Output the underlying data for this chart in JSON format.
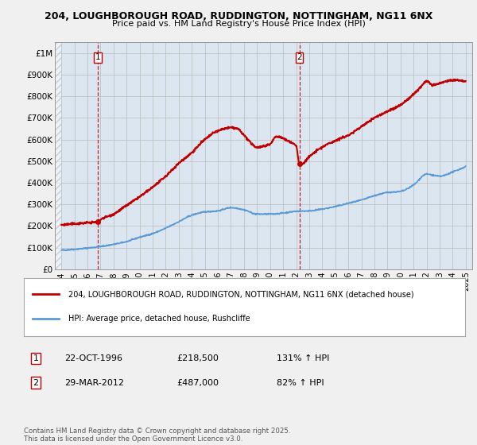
{
  "title_line1": "204, LOUGHBOROUGH ROAD, RUDDINGTON, NOTTINGHAM, NG11 6NX",
  "title_line2": "Price paid vs. HM Land Registry's House Price Index (HPI)",
  "xlim": [
    1993.5,
    2025.5
  ],
  "ylim": [
    0,
    1050000
  ],
  "yticks": [
    0,
    100000,
    200000,
    300000,
    400000,
    500000,
    600000,
    700000,
    800000,
    900000,
    1000000
  ],
  "ytick_labels": [
    "£0",
    "£100K",
    "£200K",
    "£300K",
    "£400K",
    "£500K",
    "£600K",
    "£700K",
    "£800K",
    "£900K",
    "£1M"
  ],
  "xticks": [
    1994,
    1995,
    1996,
    1997,
    1998,
    1999,
    2000,
    2001,
    2002,
    2003,
    2004,
    2005,
    2006,
    2007,
    2008,
    2009,
    2010,
    2011,
    2012,
    2013,
    2014,
    2015,
    2016,
    2017,
    2018,
    2019,
    2020,
    2021,
    2022,
    2023,
    2024,
    2025
  ],
  "hpi_color": "#5b9bd5",
  "price_color": "#c00000",
  "sale1_x": 1996.8,
  "sale1_y": 218500,
  "sale2_x": 2012.25,
  "sale2_y": 487000,
  "legend_label1": "204, LOUGHBOROUGH ROAD, RUDDINGTON, NOTTINGHAM, NG11 6NX (detached house)",
  "legend_label2": "HPI: Average price, detached house, Rushcliffe",
  "sale1_date": "22-OCT-1996",
  "sale1_price": "£218,500",
  "sale1_hpi": "131% ↑ HPI",
  "sale2_date": "29-MAR-2012",
  "sale2_price": "£487,000",
  "sale2_hpi": "82% ↑ HPI",
  "footnote": "Contains HM Land Registry data © Crown copyright and database right 2025.\nThis data is licensed under the Open Government Licence v3.0.",
  "bg_color": "#f0f0f0",
  "plot_bg": "#dce6f1"
}
